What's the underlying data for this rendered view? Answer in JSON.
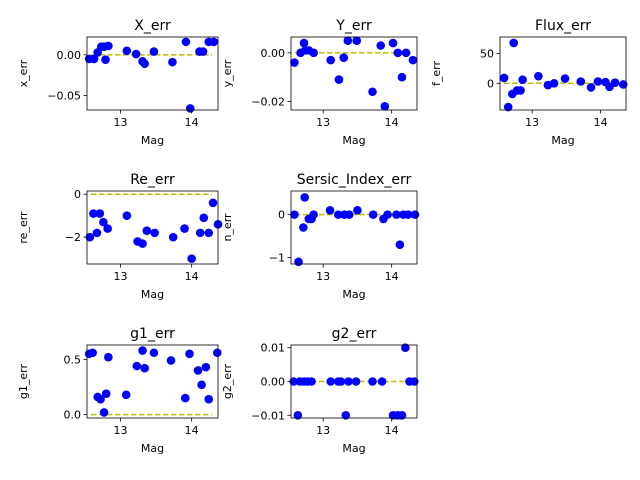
{
  "chart_data": [
    {
      "type": "scatter",
      "title": "X_err",
      "xlabel": "Mag",
      "ylabel": "x_err",
      "xlim": [
        12.53,
        14.37
      ],
      "ylim": [
        -0.068,
        0.022
      ],
      "xticks": [
        13,
        14
      ],
      "xtick_labels": [
        "13",
        "14"
      ],
      "yticks": [
        0.0,
        -0.05
      ],
      "ytick_labels": [
        "0.00",
        "−0.05"
      ],
      "reference_line": {
        "y": 0,
        "color": "#bfbf00",
        "style": "dashed"
      },
      "x": [
        12.56,
        12.63,
        12.68,
        12.73,
        12.77,
        12.79,
        12.83,
        13.09,
        13.22,
        13.31,
        13.34,
        13.47,
        13.73,
        13.92,
        13.98,
        14.11,
        14.16,
        14.24,
        14.31
      ],
      "y": [
        -0.005,
        -0.005,
        0.003,
        0.01,
        0.01,
        -0.006,
        0.011,
        0.005,
        0.001,
        -0.008,
        -0.011,
        0.004,
        -0.009,
        0.016,
        -0.066,
        0.004,
        0.004,
        0.016,
        0.016
      ]
    },
    {
      "type": "scatter",
      "title": "Y_err",
      "xlabel": "Mag",
      "ylabel": "y_err",
      "xlim": [
        12.53,
        14.37
      ],
      "ylim": [
        -0.0235,
        0.0065
      ],
      "xticks": [
        13,
        14
      ],
      "xtick_labels": [
        "13",
        "14"
      ],
      "yticks": [
        0.0,
        -0.02
      ],
      "ytick_labels": [
        "0.00",
        "−0.02"
      ],
      "reference_line": {
        "y": 0,
        "color": "#bfbf00",
        "style": "dashed"
      },
      "x": [
        12.58,
        12.67,
        12.72,
        12.74,
        12.79,
        12.86,
        13.11,
        13.23,
        13.3,
        13.36,
        13.49,
        13.72,
        13.84,
        13.9,
        14.02,
        14.09,
        14.15,
        14.21,
        14.31
      ],
      "y": [
        -0.004,
        0.0,
        0.004,
        0.001,
        0.001,
        0.0,
        -0.003,
        -0.011,
        -0.002,
        0.005,
        0.005,
        -0.016,
        0.003,
        -0.022,
        0.004,
        0.0,
        -0.01,
        0.0,
        -0.003
      ]
    },
    {
      "type": "scatter",
      "title": "Flux_err",
      "xlabel": "Mag",
      "ylabel": "f_err",
      "xlim": [
        12.53,
        14.37
      ],
      "ylim": [
        -45,
        78
      ],
      "xticks": [
        13,
        14
      ],
      "xtick_labels": [
        "13",
        "14"
      ],
      "yticks": [
        50,
        0
      ],
      "ytick_labels": [
        "50",
        "0"
      ],
      "reference_line": {
        "y": 0,
        "color": "#bfbf00",
        "style": "dashed"
      },
      "x": [
        12.59,
        12.65,
        12.71,
        12.73,
        12.78,
        12.83,
        12.86,
        13.09,
        13.23,
        13.32,
        13.48,
        13.71,
        13.86,
        13.96,
        14.07,
        14.13,
        14.21,
        14.33
      ],
      "y": [
        9,
        -40,
        -18,
        68,
        -12,
        -12,
        6,
        12,
        -3,
        0,
        8,
        3,
        -7,
        3,
        2,
        -6,
        1,
        -2
      ]
    },
    {
      "type": "scatter",
      "title": "Re_err",
      "xlabel": "Mag",
      "ylabel": "re_err",
      "xlim": [
        12.53,
        14.37
      ],
      "ylim": [
        -3.25,
        0.15
      ],
      "xticks": [
        13,
        14
      ],
      "xtick_labels": [
        "13",
        "14"
      ],
      "yticks": [
        0,
        -2
      ],
      "ytick_labels": [
        "0",
        "−2"
      ],
      "reference_line": {
        "y": 0,
        "color": "#bfbf00",
        "style": "dashed"
      },
      "x": [
        12.57,
        12.62,
        12.67,
        12.71,
        12.76,
        12.82,
        13.09,
        13.24,
        13.31,
        13.37,
        13.48,
        13.74,
        13.9,
        14.0,
        14.12,
        14.17,
        14.24,
        14.3,
        14.37
      ],
      "y": [
        -2.0,
        -0.9,
        -1.8,
        -0.9,
        -1.3,
        -1.6,
        -1.0,
        -2.2,
        -2.3,
        -1.7,
        -1.8,
        -2.0,
        -1.6,
        -3.0,
        -1.8,
        -1.1,
        -1.8,
        -0.4,
        -1.4
      ]
    },
    {
      "type": "scatter",
      "title": "Sersic_Index_err",
      "xlabel": "Mag",
      "ylabel": "n_err",
      "xlim": [
        12.53,
        14.37
      ],
      "ylim": [
        -1.15,
        0.55
      ],
      "xticks": [
        13,
        14
      ],
      "xtick_labels": [
        "13",
        "14"
      ],
      "yticks": [
        0,
        -1
      ],
      "ytick_labels": [
        "0",
        "−1"
      ],
      "reference_line": {
        "y": 0,
        "color": "#bfbf00",
        "style": "dashed"
      },
      "x": [
        12.58,
        12.64,
        12.71,
        12.73,
        12.79,
        12.83,
        12.86,
        13.1,
        13.22,
        13.31,
        13.38,
        13.5,
        13.73,
        13.88,
        13.94,
        14.07,
        14.12,
        14.17,
        14.24,
        14.34
      ],
      "y": [
        0.0,
        -1.1,
        -0.3,
        0.4,
        -0.1,
        -0.1,
        0.0,
        0.1,
        0.0,
        0.0,
        0.0,
        0.1,
        0.0,
        -0.1,
        0.0,
        0.0,
        -0.7,
        0.0,
        0.0,
        0.0
      ]
    },
    {
      "type": "scatter",
      "title": "g1_err",
      "xlabel": "Mag",
      "ylabel": "g1_err",
      "xlim": [
        12.53,
        14.37
      ],
      "ylim": [
        -0.03,
        0.63
      ],
      "xticks": [
        13,
        14
      ],
      "xtick_labels": [
        "13",
        "14"
      ],
      "yticks": [
        0.5,
        0.0
      ],
      "ytick_labels": [
        "0.5",
        "0.0"
      ],
      "reference_line": {
        "y": 0,
        "color": "#bfbf00",
        "style": "dashed"
      },
      "x": [
        12.56,
        12.61,
        12.68,
        12.72,
        12.77,
        12.8,
        12.83,
        13.08,
        13.23,
        13.31,
        13.34,
        13.47,
        13.71,
        13.91,
        13.97,
        14.09,
        14.14,
        14.2,
        14.24,
        14.36
      ],
      "y": [
        0.55,
        0.56,
        0.16,
        0.14,
        0.02,
        0.19,
        0.52,
        0.18,
        0.44,
        0.58,
        0.42,
        0.56,
        0.49,
        0.15,
        0.55,
        0.4,
        0.27,
        0.43,
        0.14,
        0.56
      ]
    },
    {
      "type": "scatter",
      "title": "g2_err",
      "xlabel": "Mag",
      "ylabel": "g2_err",
      "xlim": [
        12.53,
        14.37
      ],
      "ylim": [
        -0.0108,
        0.0108
      ],
      "xticks": [
        13,
        14
      ],
      "xtick_labels": [
        "13",
        "14"
      ],
      "yticks": [
        0.01,
        0.0,
        -0.01
      ],
      "ytick_labels": [
        "0.01",
        "0.00",
        "−0.01"
      ],
      "reference_line": {
        "y": 0,
        "color": "#bfbf00",
        "style": "dashed"
      },
      "x": [
        12.57,
        12.63,
        12.66,
        12.72,
        12.77,
        12.83,
        13.11,
        13.22,
        13.26,
        13.33,
        13.37,
        13.48,
        13.72,
        13.86,
        14.02,
        14.09,
        14.15,
        14.2,
        14.26,
        14.33
      ],
      "y": [
        0.0,
        -0.01,
        0.0,
        0.0,
        0.0,
        0.0,
        0.0,
        0.0,
        0.0,
        -0.01,
        0.0,
        0.0,
        0.0,
        0.0,
        -0.01,
        -0.01,
        -0.01,
        0.01,
        0.0,
        0.0
      ]
    }
  ],
  "colors": {
    "points": "#0000ff",
    "reference_line": "#bfbf00",
    "axes": "#000000"
  }
}
